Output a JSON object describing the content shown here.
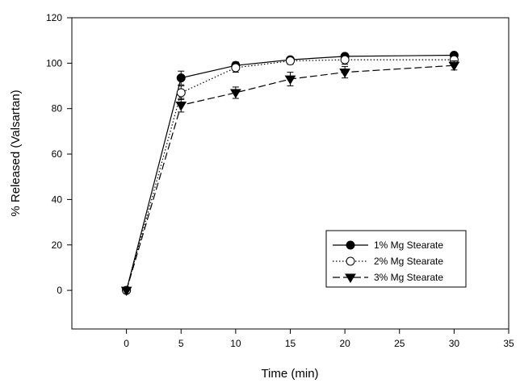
{
  "chart_data": {
    "type": "line",
    "title": "",
    "xlabel": "Time (min)",
    "ylabel": "% Released (Valsartan)",
    "xlim": [
      -5,
      35
    ],
    "ylim": [
      -17,
      120
    ],
    "xticks": [
      0,
      5,
      10,
      15,
      20,
      25,
      30,
      35
    ],
    "yticks": [
      0,
      20,
      40,
      60,
      80,
      100,
      120
    ],
    "x": [
      0,
      5,
      10,
      15,
      20,
      30
    ],
    "grid": false,
    "legend_position": "bottom-right",
    "series": [
      {
        "name": "1% Mg Stearate",
        "values": [
          0,
          93.5,
          99,
          101.5,
          103,
          103.5
        ],
        "errors": [
          0,
          3,
          1.5,
          1,
          1,
          1
        ],
        "marker": "filled-circle",
        "line_style": "solid",
        "color": "#000000"
      },
      {
        "name": "2% Mg Stearate",
        "values": [
          0,
          87,
          98,
          101,
          101.5,
          101.5
        ],
        "errors": [
          0,
          3,
          2,
          1.5,
          2,
          1.5
        ],
        "marker": "open-circle",
        "line_style": "dotted",
        "color": "#000000"
      },
      {
        "name": "3% Mg Stearate",
        "values": [
          0,
          81.5,
          87,
          93,
          96,
          99
        ],
        "errors": [
          0,
          3,
          2.5,
          3,
          2.5,
          2
        ],
        "marker": "filled-triangle-down",
        "line_style": "dashed",
        "color": "#000000"
      }
    ]
  }
}
